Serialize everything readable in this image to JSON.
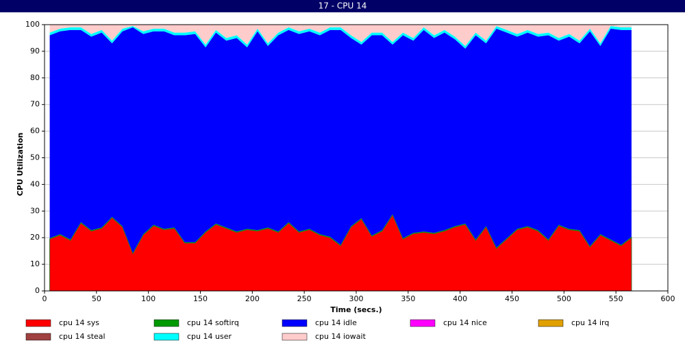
{
  "chart_data": {
    "type": "stacked-area",
    "title": "17 - CPU 14",
    "x_label": "Time (secs.)",
    "y_label": "CPU Utilization",
    "xlim": [
      0,
      600
    ],
    "xticks": [
      0,
      50,
      100,
      150,
      200,
      250,
      300,
      350,
      400,
      450,
      500,
      550,
      600
    ],
    "ylim": [
      0,
      100
    ],
    "yticks": [
      0,
      10,
      20,
      30,
      40,
      50,
      60,
      70,
      80,
      90,
      100
    ],
    "grid": true,
    "x": [
      5,
      15,
      25,
      35,
      45,
      55,
      65,
      75,
      85,
      95,
      105,
      115,
      125,
      135,
      145,
      155,
      165,
      175,
      185,
      195,
      205,
      215,
      225,
      235,
      245,
      255,
      265,
      275,
      285,
      295,
      305,
      315,
      325,
      335,
      345,
      355,
      365,
      375,
      385,
      395,
      405,
      415,
      425,
      435,
      445,
      455,
      465,
      475,
      485,
      495,
      505,
      515,
      525,
      535,
      545,
      555,
      565
    ],
    "series": [
      {
        "name": "cpu 14 sys",
        "color": "#ff0000",
        "values": [
          19.5,
          21,
          19,
          25.5,
          22.5,
          23.5,
          27.5,
          24,
          14,
          21,
          24.5,
          23,
          23.5,
          18,
          18,
          22,
          25,
          23.5,
          22,
          23,
          22.5,
          23.5,
          22,
          25.5,
          22,
          23,
          21,
          20,
          17,
          24,
          27,
          20.5,
          22.5,
          28.5,
          19.5,
          21.5,
          22,
          21.5,
          22.5,
          24,
          25,
          19,
          24,
          16,
          19.5,
          23,
          24,
          22.5,
          19,
          24.5,
          23,
          22.5,
          16.5,
          21,
          19,
          17,
          20
        ]
      },
      {
        "name": "cpu 14 softirq",
        "color": "#009900",
        "values": [
          0.3,
          0.3,
          0.3,
          0.3,
          0.3,
          0.3,
          0.3,
          0.3,
          0.3,
          0.3,
          0.3,
          0.3,
          0.3,
          0.3,
          0.3,
          0.3,
          0.3,
          0.3,
          0.3,
          0.3,
          0.3,
          0.3,
          0.3,
          0.3,
          0.3,
          0.3,
          0.3,
          0.3,
          0.3,
          0.3,
          0.3,
          0.3,
          0.3,
          0.3,
          0.3,
          0.3,
          0.3,
          0.3,
          0.3,
          0.3,
          0.3,
          0.3,
          0.3,
          0.3,
          0.3,
          0.3,
          0.3,
          0.3,
          0.3,
          0.3,
          0.3,
          0.3,
          0.3,
          0.3,
          0.3,
          0.3,
          0.3
        ]
      },
      {
        "name": "cpu 14 idle",
        "color": "#0000ff",
        "values": [
          76.2,
          76.2,
          78.7,
          72.2,
          72.7,
          73.2,
          65.2,
          73.2,
          84.7,
          75.2,
          72.7,
          74.2,
          72.2,
          77.7,
          78.2,
          69.2,
          71.7,
          70.2,
          72.7,
          68.2,
          74.7,
          68.2,
          73.7,
          72.2,
          74.2,
          74.2,
          74.7,
          77.7,
          80.7,
          70.7,
          65.2,
          75.2,
          73.2,
          63.7,
          76.2,
          72.2,
          75.7,
          73.2,
          74.2,
          70.2,
          65.7,
          76.7,
          68.7,
          82.2,
          77.2,
          72.2,
          72.7,
          72.7,
          76.7,
          69.2,
          72.2,
          70.2,
          80.7,
          70.7,
          79.2,
          80.7,
          77.7
        ]
      },
      {
        "name": "cpu 14 nice",
        "color": "#ff00ff",
        "values": [
          0,
          0,
          0,
          0,
          0,
          0,
          0,
          0,
          0,
          0,
          0,
          0,
          0,
          0,
          0,
          0,
          0,
          0,
          0,
          0,
          0,
          0,
          0,
          0,
          0,
          0,
          0,
          0,
          0,
          0,
          0,
          0,
          0,
          0,
          0,
          0,
          0,
          0,
          0,
          0,
          0,
          0,
          0,
          0,
          0,
          0,
          0,
          0,
          0,
          0,
          0,
          0,
          0,
          0,
          0,
          0,
          0
        ]
      },
      {
        "name": "cpu 14 irq",
        "color": "#e0a000",
        "values": [
          0,
          0,
          0,
          0,
          0,
          0,
          0,
          0,
          0,
          0,
          0,
          0,
          0,
          0,
          0,
          0,
          0,
          0,
          0,
          0,
          0,
          0,
          0,
          0,
          0,
          0,
          0,
          0,
          0,
          0,
          0,
          0,
          0,
          0,
          0,
          0,
          0,
          0,
          0,
          0,
          0,
          0,
          0,
          0,
          0,
          0,
          0,
          0,
          0,
          0,
          0,
          0,
          0,
          0,
          0,
          0,
          0
        ]
      },
      {
        "name": "cpu 14 steal",
        "color": "#a04040",
        "values": [
          0,
          0,
          0,
          0,
          0,
          0,
          0,
          0,
          0,
          0,
          0,
          0,
          0,
          0,
          0,
          0,
          0,
          0,
          0,
          0,
          0,
          0,
          0,
          0,
          0,
          0,
          0,
          0,
          0,
          0,
          0,
          0,
          0,
          0,
          0,
          0,
          0,
          0,
          0,
          0,
          0,
          0,
          0,
          0,
          0,
          0,
          0,
          0,
          0,
          0,
          0,
          0,
          0,
          0,
          0,
          0,
          0
        ]
      },
      {
        "name": "cpu 14 user",
        "color": "#00ffff",
        "values": [
          1,
          1,
          1,
          1,
          1,
          1,
          1,
          1,
          0.5,
          1,
          1,
          1,
          1,
          1,
          1,
          1,
          1,
          1,
          1,
          1,
          1,
          1,
          1,
          1,
          1,
          1,
          1,
          1,
          1,
          1,
          1,
          1,
          1,
          1,
          1,
          1,
          1,
          1,
          1,
          1,
          1,
          1,
          1,
          1,
          1,
          1,
          1,
          1,
          1,
          1,
          1,
          1,
          1,
          1,
          1,
          1,
          1
        ]
      },
      {
        "name": "cpu 14 iowait",
        "color": "#ffcccc",
        "values": [
          3,
          1.5,
          1,
          1,
          3.5,
          2,
          6,
          1.5,
          0.5,
          2.5,
          1.5,
          1.5,
          3,
          3,
          2.5,
          7.5,
          2,
          5,
          4,
          7.5,
          1.5,
          7,
          3,
          1,
          2.5,
          1.5,
          3,
          1,
          1,
          4,
          6.5,
          3,
          3,
          6.5,
          3,
          5,
          1,
          4,
          2,
          4.5,
          8,
          3,
          6,
          0.5,
          2,
          3.5,
          2,
          3.5,
          3,
          5,
          3.5,
          6,
          1.5,
          7,
          0.5,
          0.5,
          0.5
        ]
      }
    ]
  }
}
